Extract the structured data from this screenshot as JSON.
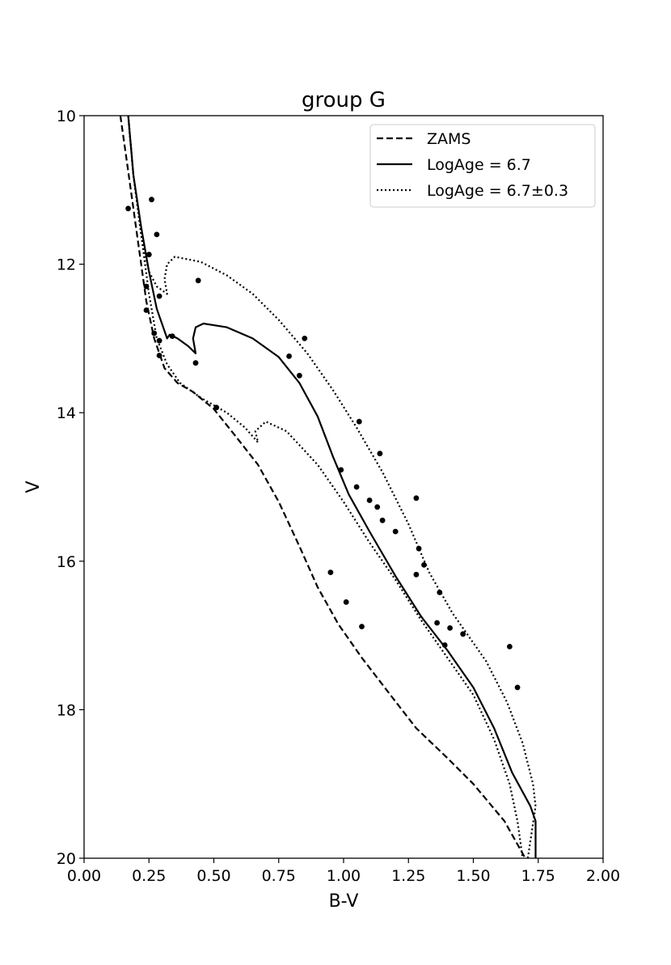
{
  "chart_data": {
    "type": "scatter",
    "title": "group G",
    "xlabel": "B-V",
    "ylabel": "V",
    "xlim": [
      0.0,
      2.0
    ],
    "ylim": [
      20,
      10
    ],
    "y_inverted": true,
    "xticks": [
      "0.00",
      "0.25",
      "0.50",
      "0.75",
      "1.00",
      "1.25",
      "1.50",
      "1.75",
      "2.00"
    ],
    "yticks": [
      "10",
      "12",
      "14",
      "16",
      "18",
      "20"
    ],
    "grid": false,
    "legend_position": "top-right",
    "legend": [
      {
        "label": "ZAMS",
        "style": "dashed"
      },
      {
        "label": "LogAge = 6.7",
        "style": "solid"
      },
      {
        "label": "LogAge = 6.7±0.3",
        "style": "dotted"
      }
    ],
    "points": [
      [
        0.17,
        11.25
      ],
      [
        0.26,
        11.13
      ],
      [
        0.28,
        11.6
      ],
      [
        0.25,
        11.87
      ],
      [
        0.24,
        12.3
      ],
      [
        0.29,
        12.43
      ],
      [
        0.24,
        12.62
      ],
      [
        0.44,
        12.22
      ],
      [
        0.27,
        12.93
      ],
      [
        0.34,
        12.97
      ],
      [
        0.29,
        13.03
      ],
      [
        0.29,
        13.23
      ],
      [
        0.43,
        13.33
      ],
      [
        0.51,
        13.93
      ],
      [
        0.79,
        13.24
      ],
      [
        0.83,
        13.5
      ],
      [
        0.85,
        13.0
      ],
      [
        1.06,
        14.12
      ],
      [
        1.14,
        14.55
      ],
      [
        0.99,
        14.77
      ],
      [
        1.05,
        15.0
      ],
      [
        1.1,
        15.18
      ],
      [
        1.13,
        15.27
      ],
      [
        1.15,
        15.45
      ],
      [
        1.2,
        15.6
      ],
      [
        1.28,
        15.15
      ],
      [
        1.29,
        15.83
      ],
      [
        1.31,
        16.05
      ],
      [
        1.28,
        16.18
      ],
      [
        1.37,
        16.42
      ],
      [
        0.95,
        16.15
      ],
      [
        1.01,
        16.55
      ],
      [
        1.07,
        16.88
      ],
      [
        1.36,
        16.83
      ],
      [
        1.41,
        16.9
      ],
      [
        1.46,
        16.98
      ],
      [
        1.39,
        17.13
      ],
      [
        1.64,
        17.15
      ],
      [
        1.67,
        17.7
      ]
    ],
    "series": [
      {
        "name": "ZAMS",
        "style": "dashed",
        "points": [
          [
            0.14,
            10.0
          ],
          [
            0.16,
            10.5
          ],
          [
            0.18,
            11.0
          ],
          [
            0.2,
            11.5
          ],
          [
            0.22,
            12.0
          ],
          [
            0.24,
            12.5
          ],
          [
            0.27,
            13.0
          ],
          [
            0.31,
            13.4
          ],
          [
            0.36,
            13.6
          ],
          [
            0.42,
            13.72
          ],
          [
            0.5,
            13.95
          ],
          [
            0.58,
            14.3
          ],
          [
            0.67,
            14.7
          ],
          [
            0.75,
            15.2
          ],
          [
            0.83,
            15.8
          ],
          [
            0.9,
            16.35
          ],
          [
            0.98,
            16.85
          ],
          [
            1.07,
            17.3
          ],
          [
            1.18,
            17.8
          ],
          [
            1.28,
            18.25
          ],
          [
            1.4,
            18.65
          ],
          [
            1.5,
            19.0
          ],
          [
            1.62,
            19.5
          ],
          [
            1.7,
            20.0
          ]
        ]
      },
      {
        "name": "LogAge = 6.7",
        "style": "solid",
        "points": [
          [
            0.17,
            10.0
          ],
          [
            0.19,
            10.8
          ],
          [
            0.22,
            11.5
          ],
          [
            0.25,
            12.1
          ],
          [
            0.28,
            12.6
          ],
          [
            0.32,
            13.0
          ],
          [
            0.33,
            12.95
          ],
          [
            0.36,
            13.0
          ],
          [
            0.4,
            13.1
          ],
          [
            0.43,
            13.2
          ],
          [
            0.42,
            13.0
          ],
          [
            0.43,
            12.85
          ],
          [
            0.46,
            12.8
          ],
          [
            0.55,
            12.85
          ],
          [
            0.65,
            13.0
          ],
          [
            0.75,
            13.25
          ],
          [
            0.83,
            13.6
          ],
          [
            0.9,
            14.05
          ],
          [
            0.96,
            14.6
          ],
          [
            1.02,
            15.1
          ],
          [
            1.1,
            15.6
          ],
          [
            1.2,
            16.2
          ],
          [
            1.3,
            16.75
          ],
          [
            1.4,
            17.2
          ],
          [
            1.5,
            17.7
          ],
          [
            1.58,
            18.25
          ],
          [
            1.65,
            18.85
          ],
          [
            1.72,
            19.3
          ],
          [
            1.74,
            19.5
          ],
          [
            1.74,
            20.0
          ]
        ]
      },
      {
        "name": "LogAge = 6.7±0.3",
        "style": "dotted",
        "points": [
          [
            0.17,
            10.0
          ],
          [
            0.19,
            10.8
          ],
          [
            0.22,
            11.6
          ],
          [
            0.25,
            12.1
          ],
          [
            0.28,
            12.3
          ],
          [
            0.32,
            12.4
          ],
          [
            0.31,
            12.2
          ],
          [
            0.32,
            12.0
          ],
          [
            0.35,
            11.9
          ],
          [
            0.45,
            11.97
          ],
          [
            0.55,
            12.15
          ],
          [
            0.65,
            12.4
          ],
          [
            0.75,
            12.75
          ],
          [
            0.86,
            13.2
          ],
          [
            0.96,
            13.7
          ],
          [
            1.05,
            14.2
          ],
          [
            1.15,
            14.8
          ],
          [
            1.25,
            15.5
          ],
          [
            1.33,
            16.15
          ],
          [
            1.42,
            16.7
          ],
          [
            1.55,
            17.35
          ],
          [
            1.63,
            17.9
          ],
          [
            1.69,
            18.45
          ],
          [
            1.73,
            19.0
          ],
          [
            1.74,
            19.3
          ],
          [
            1.71,
            20.0
          ]
        ]
      },
      {
        "name": "",
        "style": "dotted",
        "points": [
          [
            0.17,
            10.0
          ],
          [
            0.19,
            10.8
          ],
          [
            0.22,
            11.6
          ],
          [
            0.25,
            12.4
          ],
          [
            0.28,
            13.0
          ],
          [
            0.32,
            13.35
          ],
          [
            0.37,
            13.6
          ],
          [
            0.45,
            13.8
          ],
          [
            0.55,
            14.0
          ],
          [
            0.62,
            14.2
          ],
          [
            0.67,
            14.4
          ],
          [
            0.66,
            14.25
          ],
          [
            0.7,
            14.12
          ],
          [
            0.78,
            14.25
          ],
          [
            0.9,
            14.7
          ],
          [
            1.0,
            15.2
          ],
          [
            1.1,
            15.75
          ],
          [
            1.2,
            16.25
          ],
          [
            1.3,
            16.8
          ],
          [
            1.4,
            17.3
          ],
          [
            1.5,
            17.8
          ],
          [
            1.58,
            18.4
          ],
          [
            1.64,
            19.0
          ],
          [
            1.67,
            19.5
          ],
          [
            1.69,
            20.0
          ]
        ]
      }
    ]
  }
}
